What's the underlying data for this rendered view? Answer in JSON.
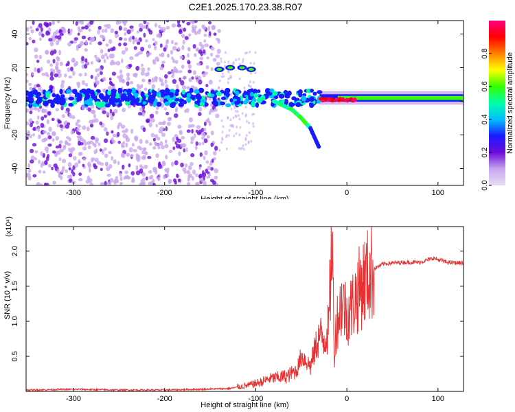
{
  "title": "C2E1.2025.170.23.38.R07",
  "chart_data": [
    {
      "type": "heatmap",
      "title": "C2E1.2025.170.23.38.R07",
      "xlabel": "Height of straight line (km)",
      "ylabel": "Frequency (Hz)",
      "xlim": [
        -352,
        128
      ],
      "ylim": [
        -50,
        48
      ],
      "xticks": [
        -300,
        -200,
        -100,
        0,
        100
      ],
      "xtick_labels": [
        "-300",
        "-200",
        "-100",
        "0",
        "100"
      ],
      "yticks": [
        -40,
        -20,
        0,
        20,
        40
      ],
      "ytick_labels": [
        "-40",
        "-20",
        "0",
        "20",
        "40"
      ],
      "colorbar": {
        "label": "Normalized spectral amplitude",
        "range": [
          0,
          1
        ],
        "ticks": [
          0.0,
          0.2,
          0.4,
          0.6,
          0.8
        ],
        "tick_labels": [
          "0.0",
          "0.2",
          "0.4",
          "0.6",
          "0.8"
        ],
        "colors": [
          "#e8dcf4",
          "#c8a6ee",
          "#6a0dd8",
          "#1a1aff",
          "#00bfff",
          "#00ffaa",
          "#33ff00",
          "#ffff00",
          "#ff8000",
          "#ff0000",
          "#ff0080"
        ]
      },
      "features": [
        {
          "name": "diffuse background",
          "x_range": [
            -352,
            -140
          ],
          "freq_range": [
            -50,
            48
          ],
          "amplitude": 0.15
        },
        {
          "name": "main band",
          "x_range": [
            -352,
            128
          ],
          "freq_center": 2,
          "amplitude": 0.5
        },
        {
          "name": "upper branch",
          "x": [
            -140,
            -128,
            -115,
            -105
          ],
          "freq": [
            19,
            20,
            20,
            19
          ]
        },
        {
          "name": "descending branch",
          "x": [
            -80,
            -60,
            -50,
            -40,
            -30
          ],
          "freq": [
            0,
            -5,
            -10,
            -16,
            -28
          ]
        }
      ]
    },
    {
      "type": "line",
      "xlabel": "Height of straight line (km)",
      "ylabel": "SNR (10 * v/v)",
      "yscale_label": "(x10⁴)",
      "xlim": [
        -352,
        128
      ],
      "ylim": [
        0,
        2.35
      ],
      "xticks": [
        -300,
        -200,
        -100,
        0,
        100
      ],
      "xtick_labels": [
        "-300",
        "-200",
        "-100",
        "0",
        "100"
      ],
      "yticks": [
        0.5,
        1.0,
        1.5,
        2.0
      ],
      "ytick_labels": [
        "0.5",
        "1.0",
        "1.5",
        "2.0"
      ],
      "series": [
        {
          "color": "#e83030",
          "x": [
            -352,
            -300,
            -250,
            -200,
            -160,
            -130,
            -110,
            -95,
            -85,
            -75,
            -65,
            -55,
            -50,
            -45,
            -40,
            -35,
            -30,
            -25,
            -20,
            -16,
            -14,
            -12,
            -10,
            -5,
            0,
            5,
            10,
            15,
            20,
            25,
            30,
            40,
            60,
            80,
            95,
            110,
            128
          ],
          "y": [
            0.02,
            0.03,
            0.02,
            0.02,
            0.03,
            0.04,
            0.08,
            0.13,
            0.18,
            0.2,
            0.22,
            0.3,
            0.5,
            0.45,
            0.35,
            0.6,
            0.8,
            0.75,
            0.9,
            2.3,
            0.5,
            0.9,
            1.05,
            1.3,
            1.1,
            1.2,
            1.35,
            1.5,
            1.6,
            1.68,
            1.75,
            1.82,
            1.84,
            1.84,
            1.9,
            1.84,
            1.83
          ]
        }
      ]
    }
  ]
}
